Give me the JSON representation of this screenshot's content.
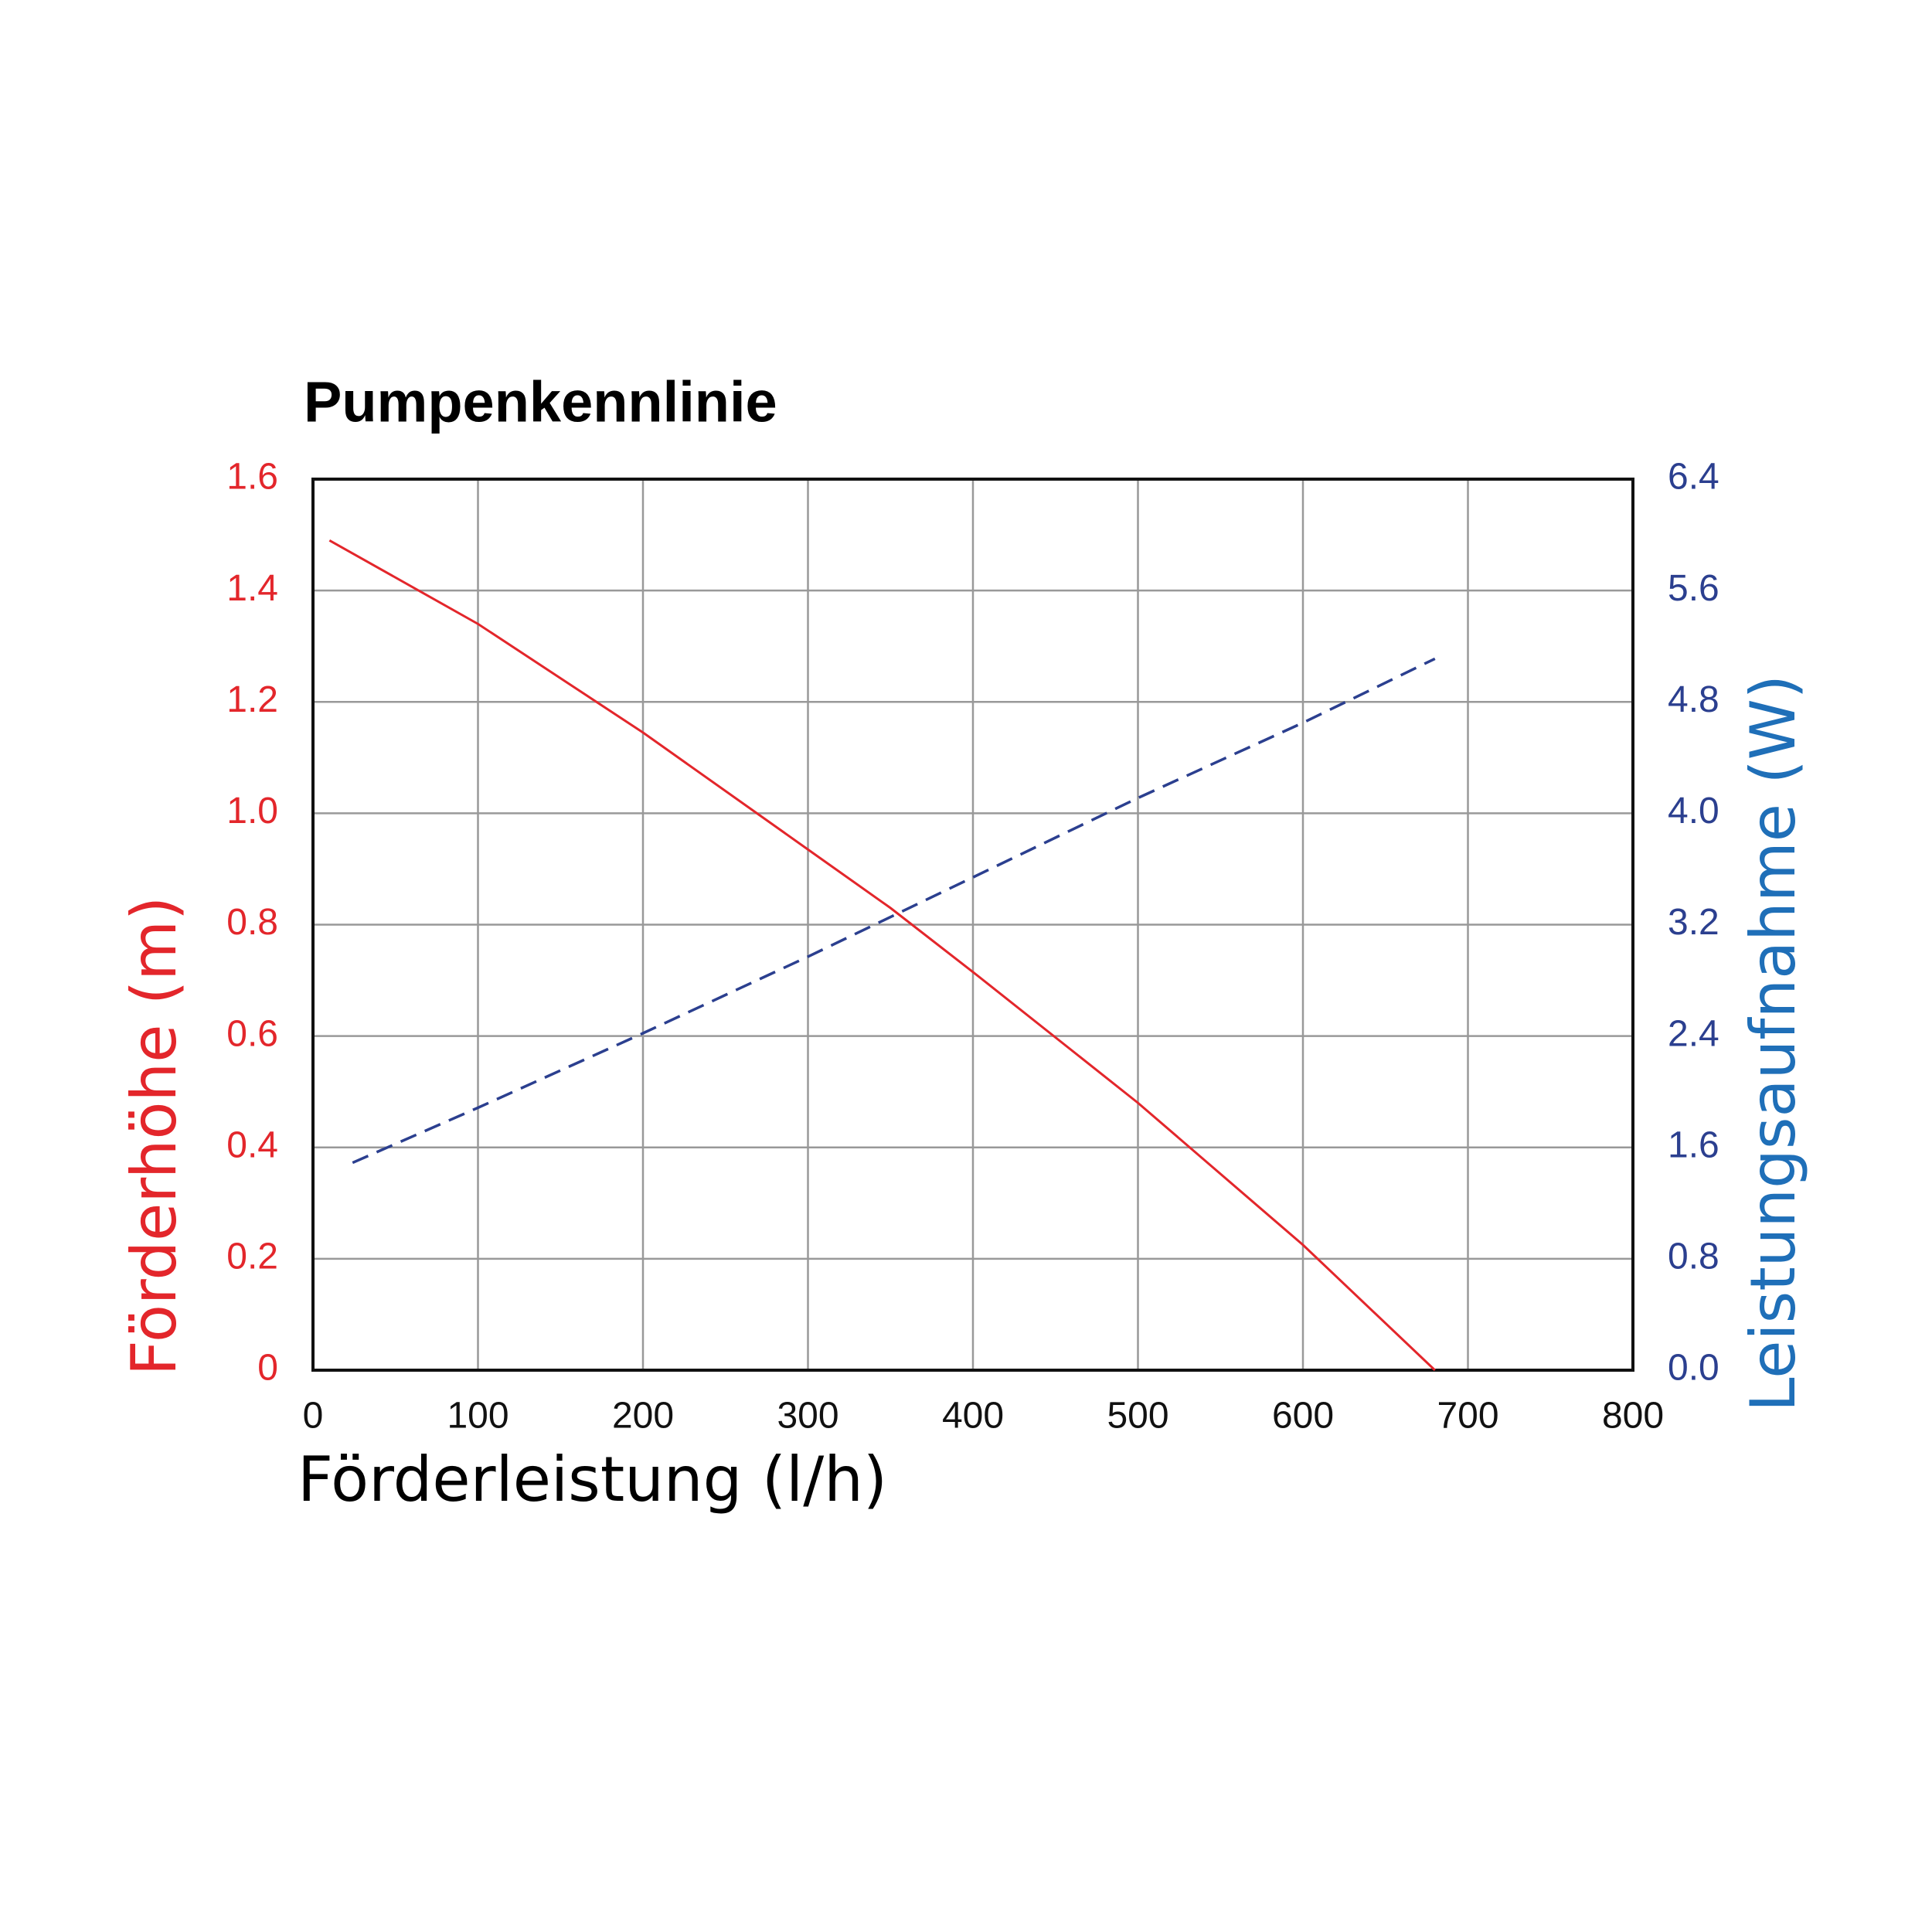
{
  "chart_data": {
    "type": "line",
    "title": "Pumpenkennlinie",
    "x_label": "Förderleistung (l/h)",
    "y_label": "Förderhöhe (m)",
    "y2_label": "Leistungsaufnahme (W)",
    "xlim": [
      0,
      800
    ],
    "xticks": [
      0,
      100,
      200,
      300,
      400,
      500,
      600,
      700,
      800
    ],
    "ylim": [
      0,
      1.6
    ],
    "yticks": [
      0,
      0.2,
      0.4,
      0.6,
      0.8,
      {
        "value": 1,
        "label": "1.0"
      },
      1.2,
      1.4,
      1.6
    ],
    "y2lim": [
      0,
      6.4
    ],
    "y2ticks": [
      {
        "value": 0,
        "label": "0.0"
      },
      0.8,
      1.6,
      2.4,
      3.2,
      {
        "value": 4,
        "label": "4.0"
      },
      4.8,
      5.6,
      6.4
    ],
    "grid": true,
    "y_color": "#e3262b",
    "y2_color": "#2b3f8f",
    "y2_label_color": "#1f6fb8",
    "series": [
      {
        "color": "#e3262b",
        "style": "solid",
        "x": [
          10,
          100,
          200,
          300,
          350,
          400,
          500,
          600,
          680
        ],
        "values": [
          1.49,
          1.34,
          1.145,
          0.935,
          0.83,
          0.715,
          0.48,
          0.225,
          0
        ]
      },
      {
        "color": "#2b3f8f",
        "style": "dashed",
        "axis": "y2",
        "x": [
          24,
          100,
          200,
          300,
          400,
          500,
          600,
          680
        ],
        "values": [
          1.49,
          1.885,
          2.42,
          2.97,
          3.54,
          4.11,
          4.65,
          5.11
        ]
      }
    ]
  }
}
